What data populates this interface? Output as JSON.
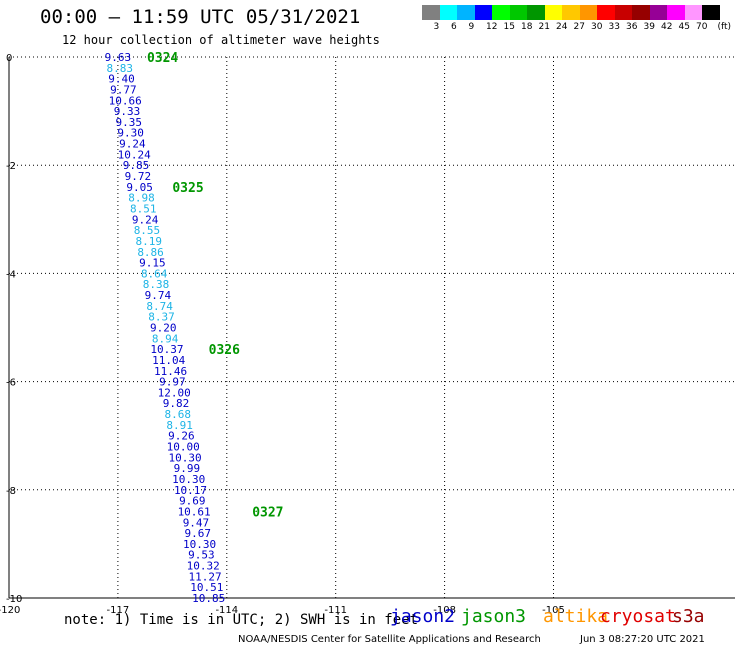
{
  "header": {
    "title": "00:00 – 11:59 UTC 05/31/2021",
    "subtitle": "12 hour collection of altimeter wave heights"
  },
  "colorbar": {
    "colors": [
      "#808080",
      "#00ffff",
      "#00b4ff",
      "#0000ff",
      "#00ff00",
      "#00c800",
      "#009600",
      "#ffff00",
      "#ffc800",
      "#ff9600",
      "#ff0000",
      "#c80000",
      "#960000",
      "#960096",
      "#ff00ff",
      "#ff96ff",
      "#000000"
    ],
    "labels": [
      "3",
      "6",
      "9",
      "12",
      "15",
      "18",
      "21",
      "24",
      "27",
      "30",
      "33",
      "36",
      "39",
      "42",
      "45",
      "70",
      "(ft)"
    ]
  },
  "note": "note: 1) Time is in UTC; 2) SWH is in feet",
  "satellites": [
    {
      "name": "jason2",
      "color": "#0000c8"
    },
    {
      "name": "jason3",
      "color": "#009600"
    },
    {
      "name": "altika",
      "color": "#ff9600"
    },
    {
      "name": "cryosat",
      "color": "#e00000"
    },
    {
      "name": "s3a",
      "color": "#960000"
    }
  ],
  "footer": {
    "source": "NOAA/NESDIS Center for Satellite Applications and Research",
    "timestamp": "Jun  3 08:27:20 UTC 2021"
  },
  "chart_data": {
    "type": "scatter",
    "title": "00:00 – 11:59 UTC 05/31/2021",
    "subtitle": "12 hour collection of altimeter wave heights",
    "xlabel": "",
    "ylabel": "",
    "xlim": [
      -120,
      -100
    ],
    "ylim": [
      -10,
      0
    ],
    "xticks": [
      -120,
      -117,
      -114,
      -111,
      -108,
      -105
    ],
    "yticks": [
      0,
      -2,
      -4,
      -6,
      -8,
      -10
    ],
    "xticklabels": [
      "-120",
      "-117",
      "-114",
      "-111",
      "-108",
      "-105"
    ],
    "yticklabels": [
      "0",
      "-2",
      "-4",
      "-6",
      "-8",
      "-10"
    ],
    "grid": true,
    "label_color_dark": "#0000c8",
    "label_color_light": "#1eb4e6",
    "time_label_color": "#009600",
    "points": [
      {
        "lon": -117.0,
        "lat": 0.0,
        "swh": "9.63"
      },
      {
        "lon": -116.95,
        "lat": -0.2,
        "swh": "8.83"
      },
      {
        "lon": -116.9,
        "lat": -0.4,
        "swh": "9.40"
      },
      {
        "lon": -116.85,
        "lat": -0.6,
        "swh": "9.77"
      },
      {
        "lon": -116.8,
        "lat": -0.8,
        "swh": "10.66"
      },
      {
        "lon": -116.75,
        "lat": -1.0,
        "swh": "9.33"
      },
      {
        "lon": -116.7,
        "lat": -1.2,
        "swh": "9.35"
      },
      {
        "lon": -116.65,
        "lat": -1.4,
        "swh": "9.30"
      },
      {
        "lon": -116.6,
        "lat": -1.6,
        "swh": "9.24"
      },
      {
        "lon": -116.55,
        "lat": -1.8,
        "swh": "10.24"
      },
      {
        "lon": -116.5,
        "lat": -2.0,
        "swh": "9.85"
      },
      {
        "lon": -116.45,
        "lat": -2.2,
        "swh": "9.72"
      },
      {
        "lon": -116.4,
        "lat": -2.4,
        "swh": "9.05"
      },
      {
        "lon": -116.35,
        "lat": -2.6,
        "swh": "8.98"
      },
      {
        "lon": -116.3,
        "lat": -2.8,
        "swh": "8.51"
      },
      {
        "lon": -116.25,
        "lat": -3.0,
        "swh": "9.24"
      },
      {
        "lon": -116.2,
        "lat": -3.2,
        "swh": "8.55"
      },
      {
        "lon": -116.15,
        "lat": -3.4,
        "swh": "8.19"
      },
      {
        "lon": -116.1,
        "lat": -3.6,
        "swh": "8.86"
      },
      {
        "lon": -116.05,
        "lat": -3.8,
        "swh": "9.15"
      },
      {
        "lon": -116.0,
        "lat": -4.0,
        "swh": "8.64"
      },
      {
        "lon": -115.95,
        "lat": -4.2,
        "swh": "8.38"
      },
      {
        "lon": -115.9,
        "lat": -4.4,
        "swh": "9.74"
      },
      {
        "lon": -115.85,
        "lat": -4.6,
        "swh": "8.74"
      },
      {
        "lon": -115.8,
        "lat": -4.8,
        "swh": "8.37"
      },
      {
        "lon": -115.75,
        "lat": -5.0,
        "swh": "9.20"
      },
      {
        "lon": -115.7,
        "lat": -5.2,
        "swh": "8.94"
      },
      {
        "lon": -115.65,
        "lat": -5.4,
        "swh": "10.37"
      },
      {
        "lon": -115.6,
        "lat": -5.6,
        "swh": "11.04"
      },
      {
        "lon": -115.55,
        "lat": -5.8,
        "swh": "11.46"
      },
      {
        "lon": -115.5,
        "lat": -6.0,
        "swh": "9.97"
      },
      {
        "lon": -115.45,
        "lat": -6.2,
        "swh": "12.00"
      },
      {
        "lon": -115.4,
        "lat": -6.4,
        "swh": "9.82"
      },
      {
        "lon": -115.35,
        "lat": -6.6,
        "swh": "8.68"
      },
      {
        "lon": -115.3,
        "lat": -6.8,
        "swh": "8.91"
      },
      {
        "lon": -115.25,
        "lat": -7.0,
        "swh": "9.26"
      },
      {
        "lon": -115.2,
        "lat": -7.2,
        "swh": "10.00"
      },
      {
        "lon": -115.15,
        "lat": -7.4,
        "swh": "10.30"
      },
      {
        "lon": -115.1,
        "lat": -7.6,
        "swh": "9.99"
      },
      {
        "lon": -115.05,
        "lat": -7.8,
        "swh": "10.30"
      },
      {
        "lon": -115.0,
        "lat": -8.0,
        "swh": "10.17"
      },
      {
        "lon": -114.95,
        "lat": -8.2,
        "swh": "9.69"
      },
      {
        "lon": -114.9,
        "lat": -8.4,
        "swh": "10.61"
      },
      {
        "lon": -114.85,
        "lat": -8.6,
        "swh": "9.47"
      },
      {
        "lon": -114.8,
        "lat": -8.8,
        "swh": "9.67"
      },
      {
        "lon": -114.75,
        "lat": -9.0,
        "swh": "10.30"
      },
      {
        "lon": -114.7,
        "lat": -9.2,
        "swh": "9.53"
      },
      {
        "lon": -114.65,
        "lat": -9.4,
        "swh": "10.32"
      },
      {
        "lon": -114.6,
        "lat": -9.6,
        "swh": "11.27"
      },
      {
        "lon": -114.55,
        "lat": -9.8,
        "swh": "10.51"
      },
      {
        "lon": -114.5,
        "lat": -10.0,
        "swh": "10.85"
      }
    ],
    "light_labels": [
      "8.83",
      "8.98",
      "8.51",
      "8.55",
      "8.19",
      "8.86",
      "8.64",
      "8.38",
      "8.74",
      "8.37",
      "8.94",
      "8.68",
      "8.91"
    ],
    "time_markers": [
      {
        "label": "0324",
        "lon": -116.2,
        "lat": 0.0
      },
      {
        "label": "0325",
        "lon": -115.5,
        "lat": -2.4
      },
      {
        "label": "0326",
        "lon": -114.5,
        "lat": -5.4
      },
      {
        "label": "0327",
        "lon": -113.3,
        "lat": -8.4
      }
    ]
  }
}
